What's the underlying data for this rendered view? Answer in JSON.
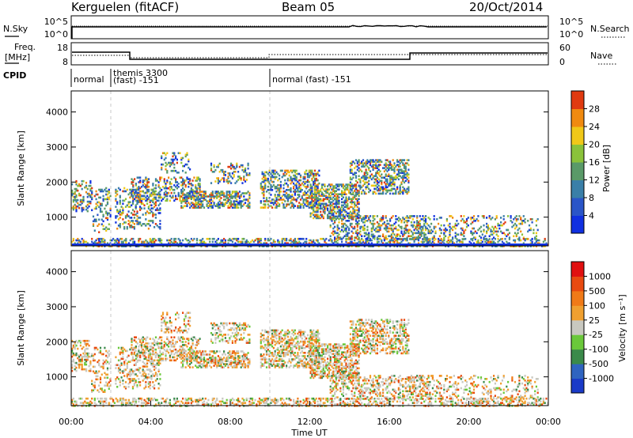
{
  "header": {
    "station": "Kerguelen (fitACF)",
    "beam": "Beam 05",
    "date": "20/Oct/2014"
  },
  "noise_panel": {
    "left_label": "N.Sky",
    "right_label": "N.Search",
    "left_ticks": [
      "10^5",
      "10^0"
    ],
    "right_ticks": [
      "10^5",
      "10^0"
    ]
  },
  "freq_panel": {
    "left_label_1": "Freq.",
    "left_label_2": "[MHz]",
    "right_label": "Nave",
    "left_ticks": [
      "18",
      "8"
    ],
    "right_ticks": [
      "60",
      "0"
    ]
  },
  "cpid_panel": {
    "label": "CPID",
    "segments": [
      {
        "start_hour": 0.0,
        "text_1": "normal",
        "text_2": ""
      },
      {
        "start_hour": 2.0,
        "text_1": "themis 3300",
        "text_2": "(fast) -151"
      },
      {
        "start_hour": 10.0,
        "text_1": "normal (fast) -151",
        "text_2": ""
      }
    ]
  },
  "chart_data": [
    {
      "type": "heatmap",
      "panel": "power",
      "ylabel": "Slant Range [km]",
      "y_ticks": [
        "1000",
        "2000",
        "3000",
        "4000"
      ],
      "ylim": [
        180,
        4600
      ],
      "xlim_hours": [
        0,
        24
      ],
      "colorbar": {
        "label": "Power [dB]",
        "tick_labels": [
          "4",
          "8",
          "12",
          "16",
          "20",
          "24",
          "28"
        ],
        "colors": [
          "#1030e0",
          "#2a55c8",
          "#3a7fa8",
          "#5a9a68",
          "#8ac23a",
          "#f0c818",
          "#f08a10",
          "#e03a10"
        ]
      }
    },
    {
      "type": "heatmap",
      "panel": "velocity",
      "ylabel": "Slant Range [km]",
      "y_ticks": [
        "1000",
        "2000",
        "3000",
        "4000"
      ],
      "ylim": [
        180,
        4600
      ],
      "xlim_hours": [
        0,
        24
      ],
      "x_ticks": [
        "00:00",
        "04:00",
        "08:00",
        "12:00",
        "16:00",
        "20:00",
        "00:00"
      ],
      "xlabel": "Time UT",
      "colorbar": {
        "label": "Velocity [m s⁻¹]",
        "tick_labels": [
          "1000",
          "500",
          "100",
          "25",
          "-25",
          "-100",
          "-500",
          "-1000"
        ],
        "colors": [
          "#1a3ac8",
          "#2f64c0",
          "#3a8a4a",
          "#6ac83a",
          "#c8c8c0",
          "#f0a030",
          "#f07a18",
          "#e84a10",
          "#e01010"
        ]
      }
    }
  ],
  "colors": {
    "axis": "#000000",
    "dashed_marker": "#c8c8c8",
    "ground_band": "#1030e0"
  }
}
